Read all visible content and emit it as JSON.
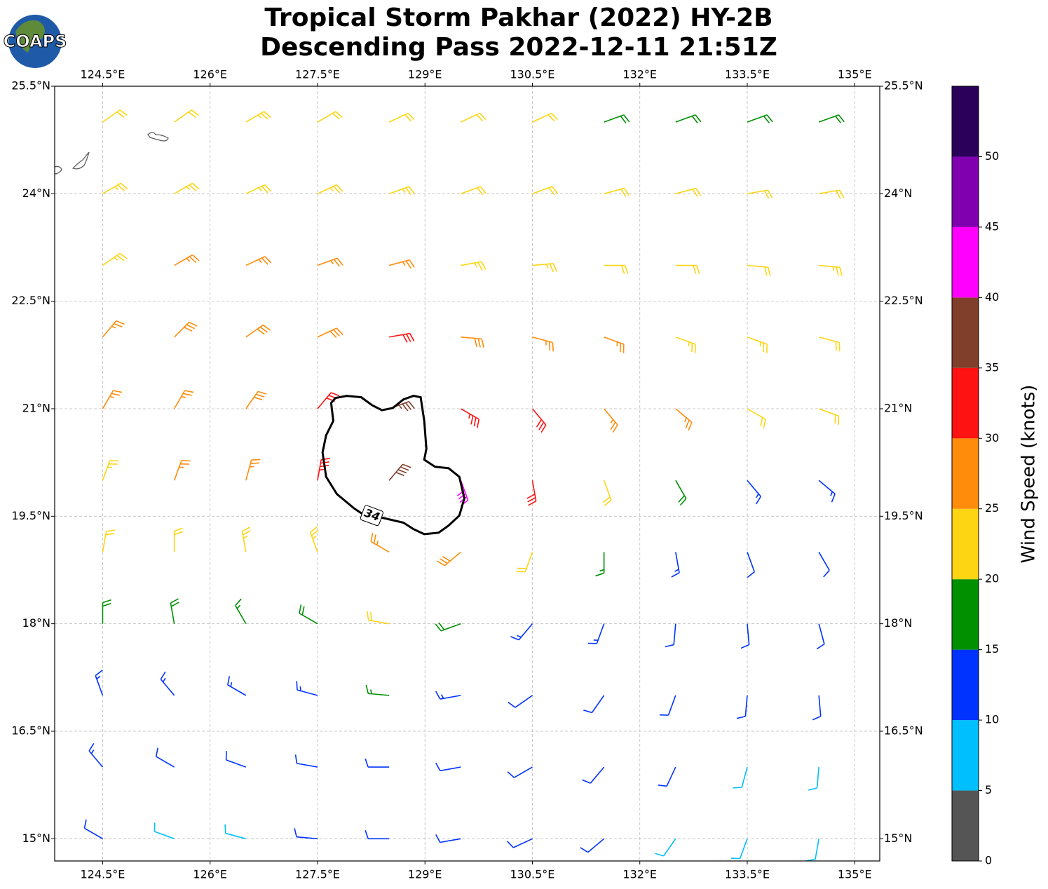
{
  "logo": "COAPS",
  "chart_data": {
    "type": "barbs",
    "title": [
      "Tropical Storm Pakhar (2022) HY-2B",
      "Descending Pass 2022-12-11 21:51Z"
    ],
    "xlim": [
      123.83,
      135.35
    ],
    "ylim": [
      14.69,
      25.5
    ],
    "xticks": [
      {
        "value": 124.5,
        "label": "124.5°E"
      },
      {
        "value": 126,
        "label": "126°E"
      },
      {
        "value": 127.5,
        "label": "127.5°E"
      },
      {
        "value": 129,
        "label": "129°E"
      },
      {
        "value": 130.5,
        "label": "130.5°E"
      },
      {
        "value": 132,
        "label": "132°E"
      },
      {
        "value": 133.5,
        "label": "133.5°E"
      },
      {
        "value": 135,
        "label": "135°E"
      }
    ],
    "yticks": [
      {
        "value": 25.5,
        "label": "25.5°N"
      },
      {
        "value": 24,
        "label": "24°N"
      },
      {
        "value": 22.5,
        "label": "22.5°N"
      },
      {
        "value": 21,
        "label": "21°N"
      },
      {
        "value": 19.5,
        "label": "19.5°N"
      },
      {
        "value": 18,
        "label": "18°N"
      },
      {
        "value": 16.5,
        "label": "16.5°N"
      },
      {
        "value": 15,
        "label": "15°N"
      }
    ],
    "grid": true,
    "lon": [
      124.5,
      125.5,
      126.5,
      127.5,
      128.5,
      129.5,
      130.5,
      131.5,
      132.5,
      133.5,
      134.5
    ],
    "lat": [
      25,
      24,
      23,
      22,
      21,
      20,
      19,
      18,
      17,
      16,
      15
    ],
    "speed": [
      [
        22,
        22,
        23,
        22,
        20,
        22,
        20,
        18,
        18,
        18,
        19
      ],
      [
        23,
        24,
        23,
        24,
        23,
        22,
        22,
        21,
        20,
        21,
        22
      ],
      [
        24,
        27,
        27,
        26,
        25,
        24,
        23,
        22,
        21,
        22,
        23
      ],
      [
        27,
        28,
        28,
        29,
        30,
        29,
        27,
        25,
        24,
        23,
        22
      ],
      [
        26,
        27,
        28,
        32,
        36,
        33,
        30,
        27,
        25,
        22,
        20
      ],
      [
        24,
        25,
        27,
        34,
        38,
        41,
        32,
        22,
        18,
        14,
        13
      ],
      [
        22,
        22,
        23,
        24,
        26,
        28,
        22,
        16,
        13,
        12,
        12
      ],
      [
        18,
        18,
        17,
        19,
        20,
        18,
        14,
        13,
        12,
        12,
        11
      ],
      [
        14,
        13,
        13,
        14,
        15,
        13,
        12,
        12,
        11,
        11,
        10
      ],
      [
        13,
        12,
        12,
        12,
        12,
        12,
        12,
        11,
        10,
        9,
        8
      ],
      [
        11,
        9,
        8,
        10,
        11,
        12,
        11,
        10,
        9,
        8,
        9
      ]
    ],
    "direction": [
      [
        55,
        55,
        60,
        60,
        65,
        65,
        65,
        70,
        70,
        70,
        70
      ],
      [
        60,
        60,
        65,
        65,
        70,
        70,
        70,
        75,
        75,
        80,
        80
      ],
      [
        55,
        60,
        65,
        70,
        75,
        80,
        85,
        90,
        90,
        95,
        95
      ],
      [
        40,
        45,
        55,
        65,
        80,
        95,
        105,
        110,
        110,
        110,
        105
      ],
      [
        30,
        30,
        35,
        40,
        70,
        120,
        140,
        140,
        130,
        120,
        110
      ],
      [
        20,
        20,
        15,
        10,
        40,
        160,
        170,
        160,
        150,
        140,
        130
      ],
      [
        10,
        0,
        350,
        340,
        300,
        230,
        200,
        180,
        170,
        160,
        150
      ],
      [
        0,
        350,
        330,
        300,
        280,
        250,
        220,
        200,
        185,
        175,
        165
      ],
      [
        340,
        320,
        300,
        285,
        275,
        260,
        235,
        215,
        200,
        185,
        175
      ],
      [
        320,
        300,
        290,
        280,
        270,
        260,
        240,
        220,
        205,
        195,
        185
      ],
      [
        300,
        290,
        285,
        275,
        270,
        260,
        245,
        230,
        215,
        200,
        190
      ]
    ],
    "contour": {
      "level": 34,
      "points": [
        [
          127.69,
          21.08
        ],
        [
          127.75,
          21.15
        ],
        [
          127.91,
          21.18
        ],
        [
          128.11,
          21.16
        ],
        [
          128.26,
          21.05
        ],
        [
          128.4,
          20.98
        ],
        [
          128.55,
          21.01
        ],
        [
          128.7,
          21.13
        ],
        [
          128.84,
          21.18
        ],
        [
          128.94,
          21.16
        ],
        [
          128.99,
          20.83
        ],
        [
          129.02,
          20.44
        ],
        [
          128.99,
          20.29
        ],
        [
          129.14,
          20.19
        ],
        [
          129.33,
          20.17
        ],
        [
          129.48,
          20.05
        ],
        [
          129.55,
          19.75
        ],
        [
          129.48,
          19.51
        ],
        [
          129.33,
          19.37
        ],
        [
          129.19,
          19.27
        ],
        [
          128.99,
          19.25
        ],
        [
          128.84,
          19.32
        ],
        [
          128.7,
          19.41
        ],
        [
          128.4,
          19.48
        ],
        [
          128.16,
          19.51
        ],
        [
          128.01,
          19.61
        ],
        [
          127.77,
          19.81
        ],
        [
          127.62,
          20.05
        ],
        [
          127.57,
          20.39
        ],
        [
          127.62,
          20.63
        ],
        [
          127.72,
          20.83
        ]
      ]
    },
    "colorbar": {
      "label": "Wind Speed (knots)",
      "bounds": [
        0,
        5,
        10,
        15,
        20,
        25,
        30,
        35,
        40,
        45,
        50,
        55
      ],
      "colors": [
        "#555555",
        "#00bfff",
        "#0033ff",
        "#009000",
        "#fdd513",
        "#ff8c0a",
        "#ff1212",
        "#803f2a",
        "#ff00ff",
        "#8000b0",
        "#2a005a"
      ],
      "ticks": [
        0,
        5,
        10,
        15,
        20,
        25,
        30,
        35,
        40,
        45,
        50
      ]
    }
  }
}
